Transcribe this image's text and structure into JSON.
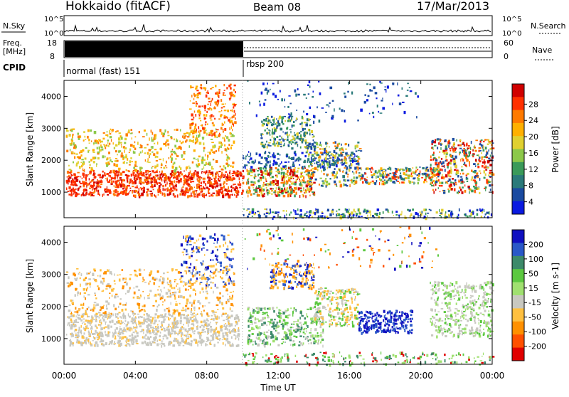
{
  "header": {
    "station": "Hokkaido (fitACF)",
    "beam": "Beam 08",
    "date": "17/Mar/2013"
  },
  "panels": {
    "nsky_label": "N.Sky",
    "nsearch_label": "N.Search",
    "freq_label_1": "Freq.",
    "freq_label_2": "[MHz]",
    "nave_label": "Nave",
    "cpid_label": "CPID",
    "nsky_ticks": [
      "10^5",
      "10^0"
    ],
    "nsearch_ticks": [
      "10^5",
      "10^0"
    ],
    "freq_ticks": [
      "18",
      "8"
    ],
    "nave_ticks": [
      "60",
      "0"
    ],
    "cpid_segments": [
      {
        "label": "normal (fast) 151",
        "start_hour": 0,
        "end_hour": 10
      },
      {
        "label": "rbsp 200",
        "start_hour": 10,
        "end_hour": 24
      }
    ]
  },
  "chart_data": {
    "type": "heatmap",
    "xlabel": "Time UT",
    "x_ticks": [
      "00:00",
      "04:00",
      "08:00",
      "12:00",
      "16:00",
      "20:00",
      "00:00"
    ],
    "xlim_hours": [
      0,
      24
    ],
    "ylabel": "Slant Range [km]",
    "y_ticks": [
      1000,
      2000,
      3000,
      4000
    ],
    "ylim_km": [
      200,
      4500
    ],
    "power_panel": {
      "colorbar_label": "Power [dB]",
      "colorbar_ticks": [
        "28",
        "24",
        "20",
        "16",
        "12",
        "8",
        "4"
      ],
      "colorbar_colors": [
        "#d00000",
        "#ff3000",
        "#ff7a00",
        "#ffb000",
        "#e0d030",
        "#8cc84a",
        "#3a9a5a",
        "#2a7a7a",
        "#1a4aa0",
        "#0a1ae0"
      ]
    },
    "velocity_panel": {
      "colorbar_label": "Velocity [m s-1]",
      "colorbar_ticks": [
        "200",
        "100",
        "50",
        "15",
        "-15",
        "-50",
        "-100",
        "-200"
      ],
      "colorbar_colors": [
        "#1010c0",
        "#2a58c8",
        "#3d8a6a",
        "#5cc840",
        "#a0e070",
        "#c8c8c0",
        "#ffc040",
        "#ff9000",
        "#ff5000",
        "#e00000"
      ]
    }
  }
}
